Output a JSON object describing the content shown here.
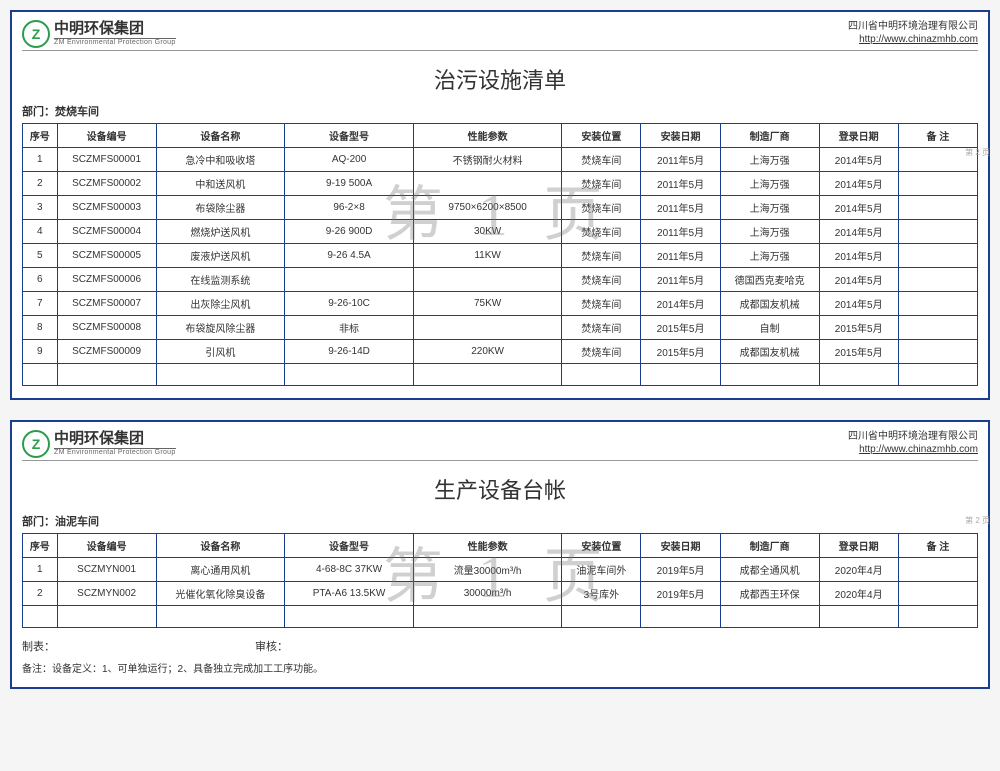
{
  "logo": {
    "cn": "中明环保集团",
    "en": "ZM Environmental Protection Group",
    "glyph": "Z"
  },
  "company": {
    "name": "四川省中明环境治理有限公司",
    "url": "http://www.chinazmhb.com"
  },
  "watermark": "第 1 页",
  "side_tab": "第 2 页",
  "doc1": {
    "title": "治污设施清单",
    "dept_label": "部门：",
    "dept_value": "焚烧车间",
    "columns": [
      "序号",
      "设备编号",
      "设备名称",
      "设备型号",
      "性能参数",
      "安装位置",
      "安装日期",
      "制造厂商",
      "登录日期",
      "备  注"
    ],
    "rows": [
      [
        "1",
        "SCZMFS00001",
        "急冷中和吸收塔",
        "AQ-200",
        "不锈钢耐火材料",
        "焚烧车间",
        "2011年5月",
        "上海万强",
        "2014年5月",
        ""
      ],
      [
        "2",
        "SCZMFS00002",
        "中和送风机",
        "9-19 500A",
        "",
        "焚烧车间",
        "2011年5月",
        "上海万强",
        "2014年5月",
        ""
      ],
      [
        "3",
        "SCZMFS00003",
        "布袋除尘器",
        "96-2×8",
        "9750×6200×8500",
        "焚烧车间",
        "2011年5月",
        "上海万强",
        "2014年5月",
        ""
      ],
      [
        "4",
        "SCZMFS00004",
        "燃烧炉送风机",
        "9-26 900D",
        "30KW",
        "焚烧车间",
        "2011年5月",
        "上海万强",
        "2014年5月",
        ""
      ],
      [
        "5",
        "SCZMFS00005",
        "废液炉送风机",
        "9-26 4.5A",
        "11KW",
        "焚烧车间",
        "2011年5月",
        "上海万强",
        "2014年5月",
        ""
      ],
      [
        "6",
        "SCZMFS00006",
        "在线监测系统",
        "",
        "",
        "焚烧车间",
        "2011年5月",
        "德国西克麦哈克",
        "2014年5月",
        ""
      ],
      [
        "7",
        "SCZMFS00007",
        "出灰除尘风机",
        "9-26-10C",
        "75KW",
        "焚烧车间",
        "2014年5月",
        "成都国友机械",
        "2014年5月",
        ""
      ],
      [
        "8",
        "SCZMFS00008",
        "布袋旋风除尘器",
        "非标",
        "",
        "焚烧车间",
        "2015年5月",
        "自制",
        "2015年5月",
        ""
      ],
      [
        "9",
        "SCZMFS00009",
        "引风机",
        "9-26-14D",
        "220KW",
        "焚烧车间",
        "2015年5月",
        "成都国友机械",
        "2015年5月",
        ""
      ],
      [
        "",
        "",
        "",
        "",
        "",
        "",
        "",
        "",
        "",
        ""
      ]
    ]
  },
  "doc2": {
    "title": "生产设备台帐",
    "dept_label": "部门：",
    "dept_value": "油泥车间",
    "columns": [
      "序号",
      "设备编号",
      "设备名称",
      "设备型号",
      "性能参数",
      "安装位置",
      "安装日期",
      "制造厂商",
      "登录日期",
      "备  注"
    ],
    "rows": [
      [
        "1",
        "SCZMYN001",
        "离心通用风机",
        "4-68-8C 37KW",
        "流量30000m³/h",
        "油泥车间外",
        "2019年5月",
        "成都全通风机",
        "2020年4月",
        ""
      ],
      [
        "2",
        "SCZMYN002",
        "光催化氧化除臭设备",
        "PTA-A6 13.5KW",
        "30000m³/h",
        "3号库外",
        "2019年5月",
        "成都西王环保",
        "2020年4月",
        ""
      ],
      [
        "",
        "",
        "",
        "",
        "",
        "",
        "",
        "",
        "",
        ""
      ]
    ],
    "footer": {
      "made_by": "制表：",
      "checked_by": "审核："
    },
    "footnote": "备注：设备定义：1、可单独运行；2、具备独立完成加工工序功能。"
  },
  "style": {
    "border_color": "#1a3d8f",
    "logo_color": "#2a9d4a",
    "watermark_color": "rgba(120,120,120,0.35)",
    "title_fontsize": 22,
    "cell_fontsize": 10
  }
}
